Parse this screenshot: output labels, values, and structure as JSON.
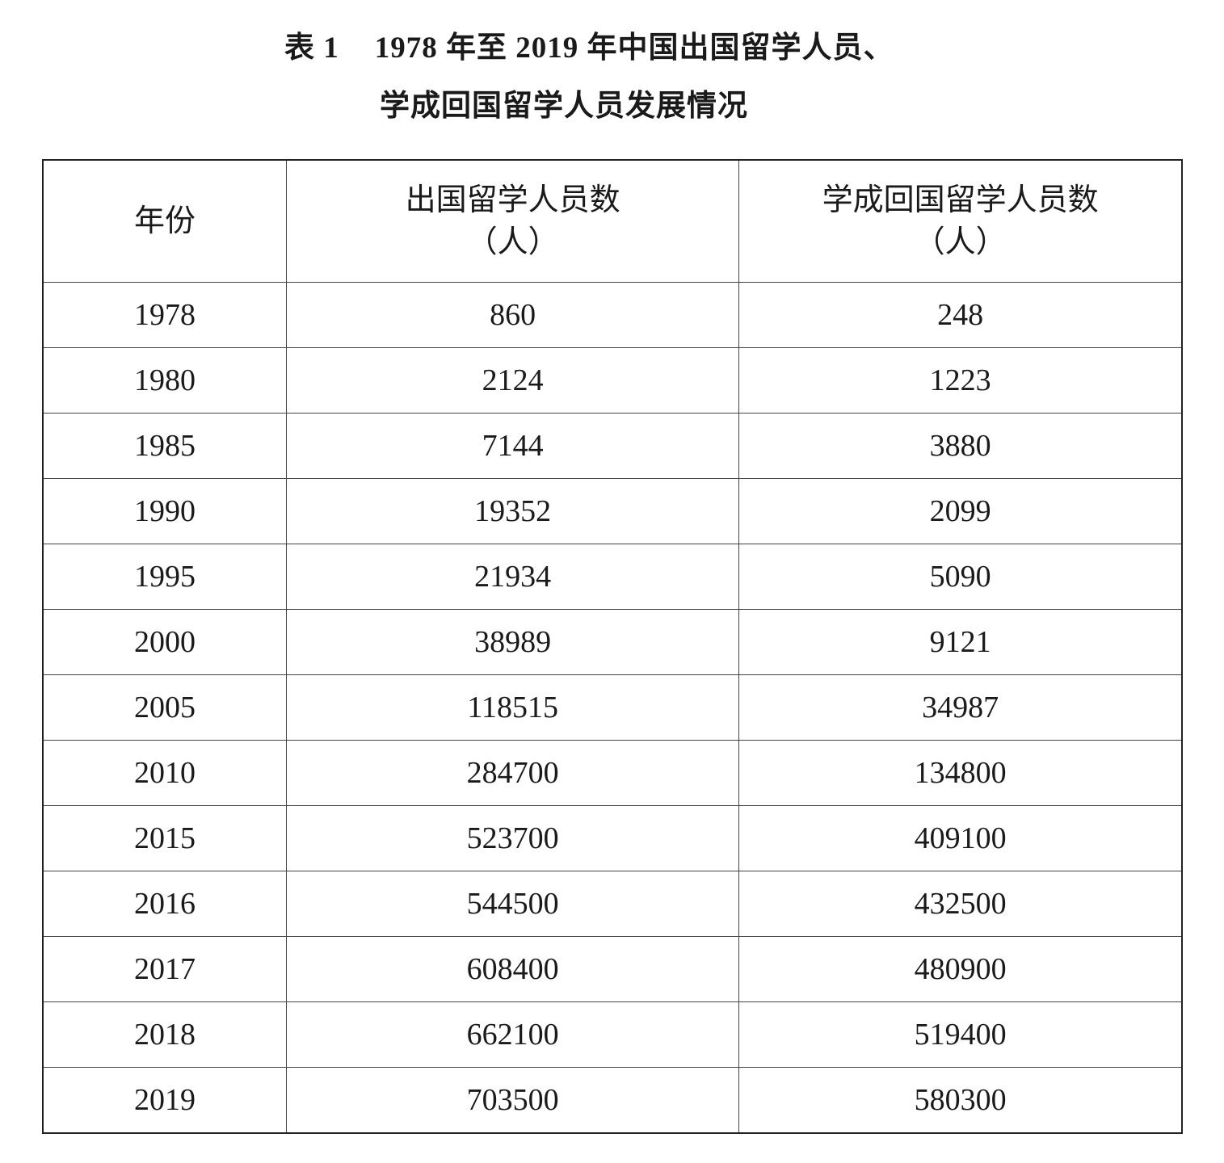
{
  "title": {
    "label": "表 1",
    "line1": "1978 年至 2019 年中国出国留学人员、",
    "line2": "学成回国留学人员发展情况"
  },
  "table": {
    "headers": [
      {
        "main": "年份",
        "unit": ""
      },
      {
        "main": "出国留学人员数",
        "unit": "（人）"
      },
      {
        "main": "学成回国留学人员数",
        "unit": "（人）"
      }
    ],
    "rows": [
      [
        "1978",
        "860",
        "248"
      ],
      [
        "1980",
        "2124",
        "1223"
      ],
      [
        "1985",
        "7144",
        "3880"
      ],
      [
        "1990",
        "19352",
        "2099"
      ],
      [
        "1995",
        "21934",
        "5090"
      ],
      [
        "2000",
        "38989",
        "9121"
      ],
      [
        "2005",
        "118515",
        "34987"
      ],
      [
        "2010",
        "284700",
        "134800"
      ],
      [
        "2015",
        "523700",
        "409100"
      ],
      [
        "2016",
        "544500",
        "432500"
      ],
      [
        "2017",
        "608400",
        "480900"
      ],
      [
        "2018",
        "662100",
        "519400"
      ],
      [
        "2019",
        "703500",
        "580300"
      ]
    ]
  }
}
